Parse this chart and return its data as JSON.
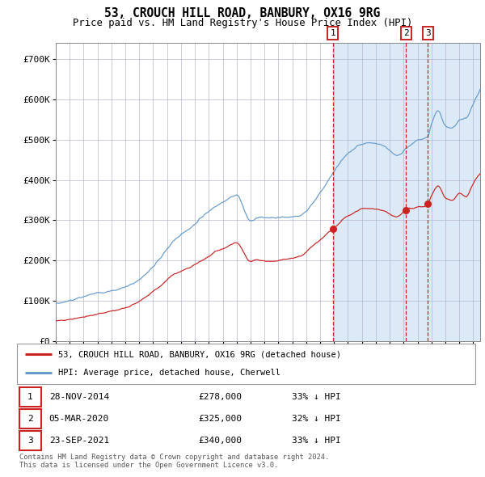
{
  "title": "53, CROUCH HILL ROAD, BANBURY, OX16 9RG",
  "subtitle": "Price paid vs. HM Land Registry's House Price Index (HPI)",
  "ylabel_ticks": [
    "£0",
    "£100K",
    "£200K",
    "£300K",
    "£400K",
    "£500K",
    "£600K",
    "£700K"
  ],
  "ytick_values": [
    0,
    100000,
    200000,
    300000,
    400000,
    500000,
    600000,
    700000
  ],
  "ylim": [
    0,
    740000
  ],
  "xlim_start": 1995.0,
  "xlim_end": 2025.5,
  "bg_fill_color": "#dce9f7",
  "vline_color": "#cc0000",
  "line1_color": "#cc2222",
  "line2_color": "#6699cc",
  "sale1_date": 2014.91,
  "sale2_date": 2020.17,
  "sale3_date": 2021.73,
  "sale1_price": 278000,
  "sale2_price": 325000,
  "sale3_price": 340000,
  "legend_line1": "53, CROUCH HILL ROAD, BANBURY, OX16 9RG (detached house)",
  "legend_line2": "HPI: Average price, detached house, Cherwell",
  "table_data": [
    [
      "1",
      "28-NOV-2014",
      "£278,000",
      "33% ↓ HPI"
    ],
    [
      "2",
      "05-MAR-2020",
      "£325,000",
      "32% ↓ HPI"
    ],
    [
      "3",
      "23-SEP-2021",
      "£340,000",
      "33% ↓ HPI"
    ]
  ],
  "footnote": "Contains HM Land Registry data © Crown copyright and database right 2024.\nThis data is licensed under the Open Government Licence v3.0."
}
